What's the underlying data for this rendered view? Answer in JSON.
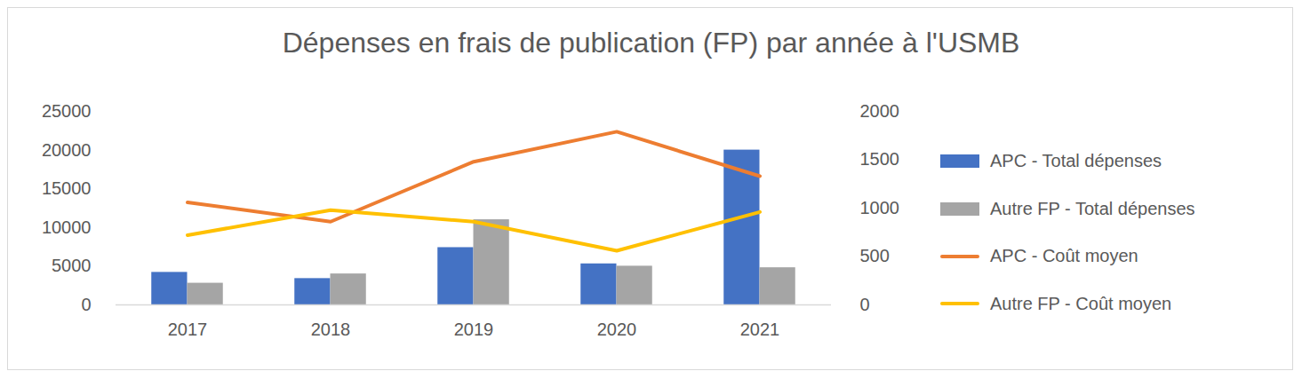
{
  "chart_data": {
    "type": "bar",
    "title": "Dépenses en frais de publication (FP) par année à l'USMB",
    "categories": [
      "2017",
      "2018",
      "2019",
      "2020",
      "2021"
    ],
    "series": [
      {
        "name": "APC - Total dépenses",
        "type": "bar",
        "color": "#4472c4",
        "values": [
          4200,
          3400,
          7400,
          5300,
          20000
        ]
      },
      {
        "name": "Autre FP - Total dépenses",
        "type": "bar",
        "color": "#a5a5a5",
        "values": [
          2800,
          4000,
          11000,
          5000,
          4800
        ]
      },
      {
        "name": "APC - Coût moyen",
        "type": "line",
        "axis": "y2",
        "color": "#ed7d31",
        "values": [
          1060,
          860,
          1480,
          1790,
          1330
        ]
      },
      {
        "name": "Autre FP - Coût moyen",
        "type": "line",
        "axis": "y2",
        "color": "#ffc000",
        "values": [
          720,
          980,
          860,
          560,
          960
        ]
      }
    ],
    "ylim": [
      0,
      25000
    ],
    "yticks": [
      0,
      5000,
      10000,
      15000,
      20000,
      25000
    ],
    "y2lim": [
      0,
      2000
    ],
    "y2ticks": [
      0,
      500,
      1000,
      1500,
      2000
    ],
    "grid": false,
    "legend": "right"
  }
}
